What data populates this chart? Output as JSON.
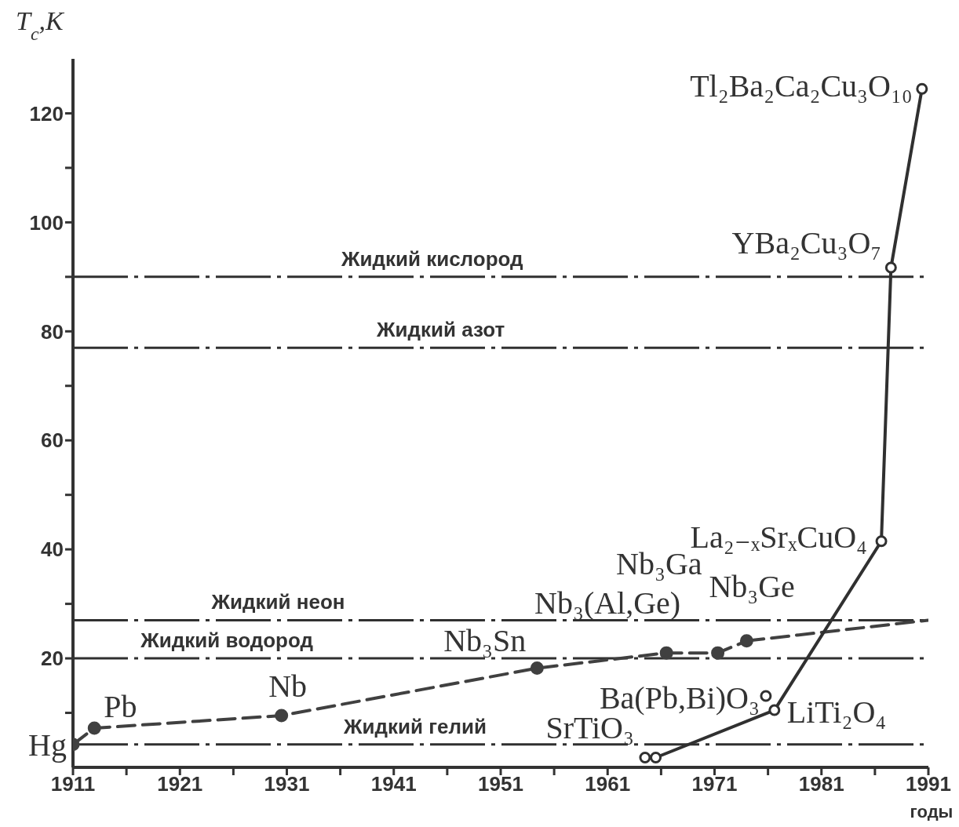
{
  "chart_data": {
    "type": "line",
    "ylabel": "T$_{c}$,K",
    "xlabel": "годы",
    "xlim": [
      1911,
      1991
    ],
    "xticks": [
      1911,
      {
        "value": 1916,
        "label": null
      },
      1921,
      {
        "value": 1926,
        "label": null
      },
      1931,
      {
        "value": 1936,
        "label": null
      },
      1941,
      {
        "value": 1946,
        "label": null
      },
      1951,
      {
        "value": 1956,
        "label": null
      },
      1961,
      {
        "value": 1966,
        "label": null
      },
      1971,
      {
        "value": 1976,
        "label": null
      },
      1981,
      {
        "value": 1986,
        "label": null
      },
      1991
    ],
    "ylim": [
      0,
      130
    ],
    "yticks": [
      {
        "value": 10,
        "label": null
      },
      20,
      {
        "value": 30,
        "label": null
      },
      40,
      {
        "value": 50,
        "label": null
      },
      60,
      {
        "value": 70,
        "label": null
      },
      80,
      {
        "value": 90,
        "label": null
      },
      100,
      {
        "value": 110,
        "label": null
      },
      120
    ],
    "grid": false,
    "series": [
      {
        "type": "line",
        "line_style": "dashed",
        "marker": "circle",
        "color": "#404040",
        "x": [
          1911,
          1913,
          1930.5,
          1954.4,
          1966.5,
          1971.3,
          1974
        ],
        "values": [
          4.2,
          7.2,
          9.5,
          18.2,
          21,
          21,
          23.2
        ]
      },
      {
        "type": "line",
        "line_style": "dashed",
        "marker": "none",
        "color": "#404040",
        "x": [
          1974,
          1991
        ],
        "values": [
          23.2,
          27
        ]
      },
      {
        "type": "line",
        "line_style": "solid",
        "marker": "circle",
        "color": "#303030",
        "x": [
          1964.5,
          1965.5,
          1976.6,
          1986.6,
          1987.5,
          1990.4
        ],
        "values": [
          1.8,
          1.8,
          10.5,
          41.5,
          91.7,
          124.5
        ]
      },
      {
        "type": "scatter",
        "marker": "circle",
        "color": "#303030",
        "x": [
          1975.8
        ],
        "values": [
          13.1
        ]
      }
    ],
    "ref_lines": [
      {
        "axis": "y",
        "value": 90,
        "label": "Жидкий кислород",
        "line_style": "dashed",
        "color": "#303030"
      },
      {
        "axis": "y",
        "value": 77,
        "label": "Жидкий азот",
        "line_style": "dashed",
        "color": "#303030"
      },
      {
        "axis": "y",
        "value": 27,
        "label": "Жидкий неон",
        "line_style": "dashed",
        "color": "#303030"
      },
      {
        "axis": "y",
        "value": 20,
        "label": "Жидкий водород",
        "line_style": "dashed",
        "color": "#303030"
      },
      {
        "axis": "y",
        "value": 4.2,
        "label": "Жидкий гелий",
        "line_style": "dashed",
        "color": "#303030"
      }
    ],
    "annotations": [
      {
        "text": "Hg",
        "x": 1911,
        "y": 4.2
      },
      {
        "text": "Pb",
        "x": 1913,
        "y": 7.2
      },
      {
        "text": "Nb",
        "x": 1930.5,
        "y": 9.5
      },
      {
        "text": "Nb₃Sn",
        "x": 1954.4,
        "y": 18.2
      },
      {
        "text": "Nb₃(Al,Ge)",
        "x": 1966.5,
        "y": 21
      },
      {
        "text": "Nb₃Ga",
        "x": 1971.3,
        "y": 21
      },
      {
        "text": "Nb₃Ge",
        "x": 1974,
        "y": 23.2
      },
      {
        "text": "SrTiO₃",
        "x": 1964.5,
        "y": 1.8
      },
      {
        "text": "Ba(Pb,Bi)O₃",
        "x": 1975.8,
        "y": 13.1
      },
      {
        "text": "LiTi₂O₄",
        "x": 1976.6,
        "y": 10.5
      },
      {
        "text": "La₂₋ₓSrₓCuO₄",
        "x": 1986.6,
        "y": 41.5
      },
      {
        "text": "YBa₂Cu₃O₇",
        "x": 1987.5,
        "y": 91.7
      },
      {
        "text": "Tl₂Ba₂Ca₂Cu₃O₁₀",
        "x": 1990.4,
        "y": 124.5
      }
    ]
  }
}
